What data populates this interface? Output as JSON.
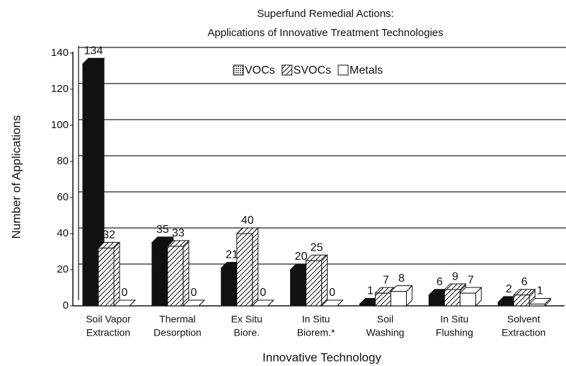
{
  "chart_data": {
    "type": "bar3d",
    "title": [
      "Superfund Remedial Actions:",
      "Applications of Innovative Treatment Technologies"
    ],
    "x_label": "Innovative Technology",
    "y_label": "Number of Applications",
    "categories": [
      [
        "Soil Vapor",
        "Extraction"
      ],
      [
        "Thermal",
        "Desorption"
      ],
      [
        "Ex Situ",
        "Biore."
      ],
      [
        "In Situ",
        "Biorem.*"
      ],
      [
        "Soil",
        "Washing"
      ],
      [
        "In Situ",
        "Flushing"
      ],
      [
        "Solvent",
        "Extraction"
      ]
    ],
    "series": [
      {
        "name": "VOCs",
        "color": "#111111",
        "values": [
          134,
          35,
          21,
          20,
          1,
          6,
          2
        ]
      },
      {
        "name": "SVOCs",
        "color": "hatch",
        "values": [
          32,
          33,
          40,
          25,
          7,
          9,
          6
        ]
      },
      {
        "name": "Metals",
        "color": "#ffffff",
        "values": [
          0,
          0,
          0,
          0,
          8,
          7,
          1
        ]
      }
    ],
    "ylim": [
      0,
      140
    ],
    "yticks": [
      0,
      20,
      40,
      60,
      80,
      100,
      120,
      140
    ],
    "grid": true,
    "legend": "top"
  }
}
